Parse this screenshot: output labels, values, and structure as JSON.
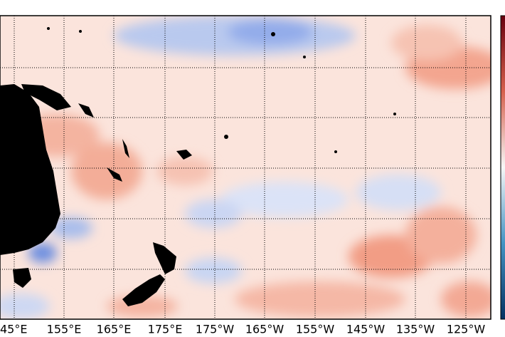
{
  "x_axis": {
    "labels": [
      "45°E",
      "155°E",
      "165°E",
      "175°E",
      "175°W",
      "165°W",
      "155°W",
      "145°W",
      "135°W",
      "125°W"
    ]
  }
}
